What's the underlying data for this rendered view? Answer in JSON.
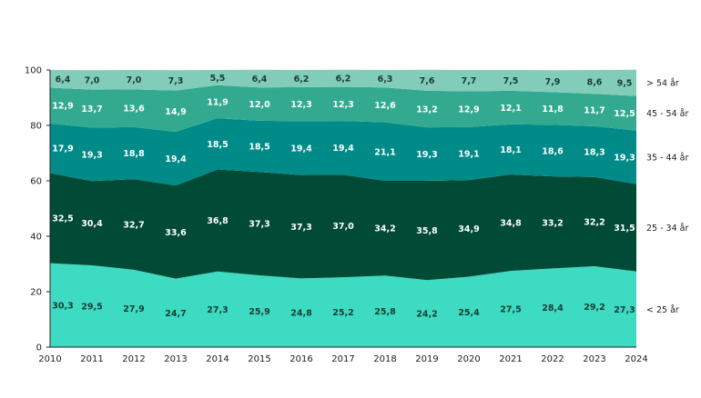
{
  "chart_data": {
    "type": "area",
    "stacked": true,
    "title": "",
    "xlabel": "",
    "ylabel": "",
    "ylim": [
      0,
      100
    ],
    "yticks": [
      "0",
      "20",
      "40",
      "60",
      "80",
      "100"
    ],
    "x": [
      "2010",
      "2011",
      "2012",
      "2013",
      "2014",
      "2015",
      "2016",
      "2017",
      "2018",
      "2019",
      "2020",
      "2021",
      "2022",
      "2023",
      "2024"
    ],
    "legend_position": "right",
    "series": [
      {
        "name": "< 25 år",
        "color": "#3ddcc2",
        "label_color": "#1a3a33",
        "values": [
          30.3,
          29.5,
          27.9,
          24.7,
          27.3,
          25.9,
          24.8,
          25.2,
          25.8,
          24.2,
          25.4,
          27.5,
          28.4,
          29.2,
          27.3
        ],
        "labels": [
          "30,3",
          "29,5",
          "27,9",
          "24,7",
          "27,3",
          "25,9",
          "24,8",
          "25,2",
          "25,8",
          "24,2",
          "25,4",
          "27,5",
          "28,4",
          "29,2",
          "27,3"
        ]
      },
      {
        "name": "25 - 34 år",
        "color": "#004a36",
        "label_color": "#ffffff",
        "values": [
          32.5,
          30.4,
          32.7,
          33.6,
          36.8,
          37.3,
          37.3,
          37.0,
          34.2,
          35.8,
          34.9,
          34.8,
          33.2,
          32.2,
          31.5
        ],
        "labels": [
          "32,5",
          "30,4",
          "32,7",
          "33,6",
          "36,8",
          "37,3",
          "37,3",
          "37,0",
          "34,2",
          "35,8",
          "34,9",
          "34,8",
          "33,2",
          "32,2",
          "31,5"
        ]
      },
      {
        "name": "35 - 44 år",
        "color": "#008b89",
        "label_color": "#ffffff",
        "values": [
          17.9,
          19.3,
          18.8,
          19.4,
          18.5,
          18.5,
          19.4,
          19.4,
          21.1,
          19.3,
          19.1,
          18.1,
          18.6,
          18.3,
          19.3
        ],
        "labels": [
          "17,9",
          "19,3",
          "18,8",
          "19,4",
          "18,5",
          "18,5",
          "19,4",
          "19,4",
          "21,1",
          "19,3",
          "19,1",
          "18,1",
          "18,6",
          "18,3",
          "19,3"
        ]
      },
      {
        "name": "45 - 54 år",
        "color": "#33aa90",
        "label_color": "#ffffff",
        "values": [
          12.9,
          13.7,
          13.6,
          14.9,
          11.9,
          12.0,
          12.3,
          12.3,
          12.6,
          13.2,
          12.9,
          12.1,
          11.8,
          11.7,
          12.5
        ],
        "labels": [
          "12,9",
          "13,7",
          "13,6",
          "14,9",
          "11,9",
          "12,0",
          "12,3",
          "12,3",
          "12,6",
          "13,2",
          "12,9",
          "12,1",
          "11,8",
          "11,7",
          "12,5"
        ]
      },
      {
        "name": "> 54 år",
        "color": "#82cdb9",
        "label_color": "#1a3a33",
        "values": [
          6.4,
          7.0,
          7.0,
          7.3,
          5.5,
          6.4,
          6.2,
          6.2,
          6.3,
          7.6,
          7.7,
          7.5,
          7.9,
          8.6,
          9.5
        ],
        "labels": [
          "6,4",
          "7,0",
          "7,0",
          "7,3",
          "5,5",
          "6,4",
          "6,2",
          "6,2",
          "6,3",
          "7,6",
          "7,7",
          "7,5",
          "7,9",
          "8,6",
          "9,5"
        ]
      }
    ]
  }
}
